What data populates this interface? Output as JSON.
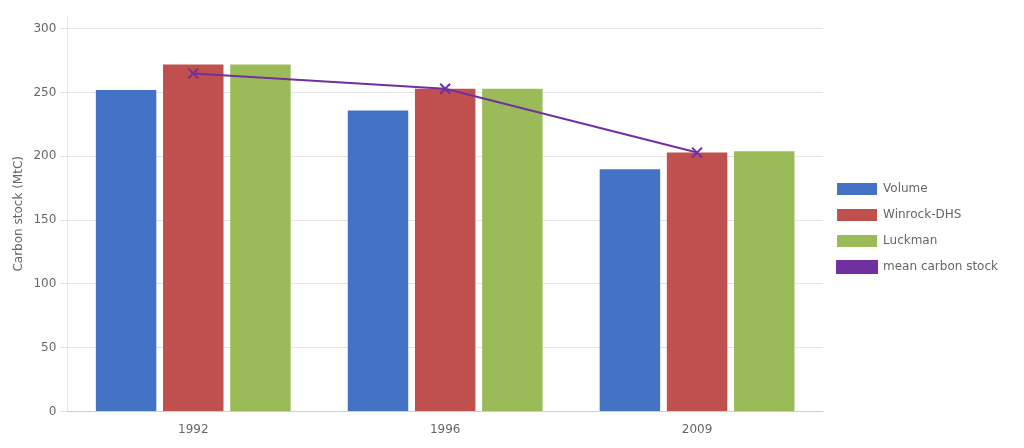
{
  "chart_data": {
    "type": "bar",
    "categories": [
      "1992",
      "1996",
      "2009"
    ],
    "series": [
      {
        "name": "Volume",
        "color": "#4472C4",
        "values": [
          252,
          236,
          190
        ]
      },
      {
        "name": "Winrock-DHS",
        "color": "#C0504D",
        "values": [
          272,
          253,
          203
        ]
      },
      {
        "name": "Luckman",
        "color": "#9BBB59",
        "values": [
          272,
          253,
          204
        ]
      },
      {
        "name": "mean carbon stock",
        "type": "line",
        "marker": "x",
        "line_style": "solid",
        "color": "#7030A0",
        "values": [
          265,
          253,
          203
        ]
      }
    ],
    "ylabel": "Carbon stock (MtC)",
    "ylim": [
      0,
      310
    ],
    "yticks": [
      0,
      50,
      100,
      150,
      200,
      250,
      300
    ],
    "grid": "y",
    "legend": "right"
  }
}
